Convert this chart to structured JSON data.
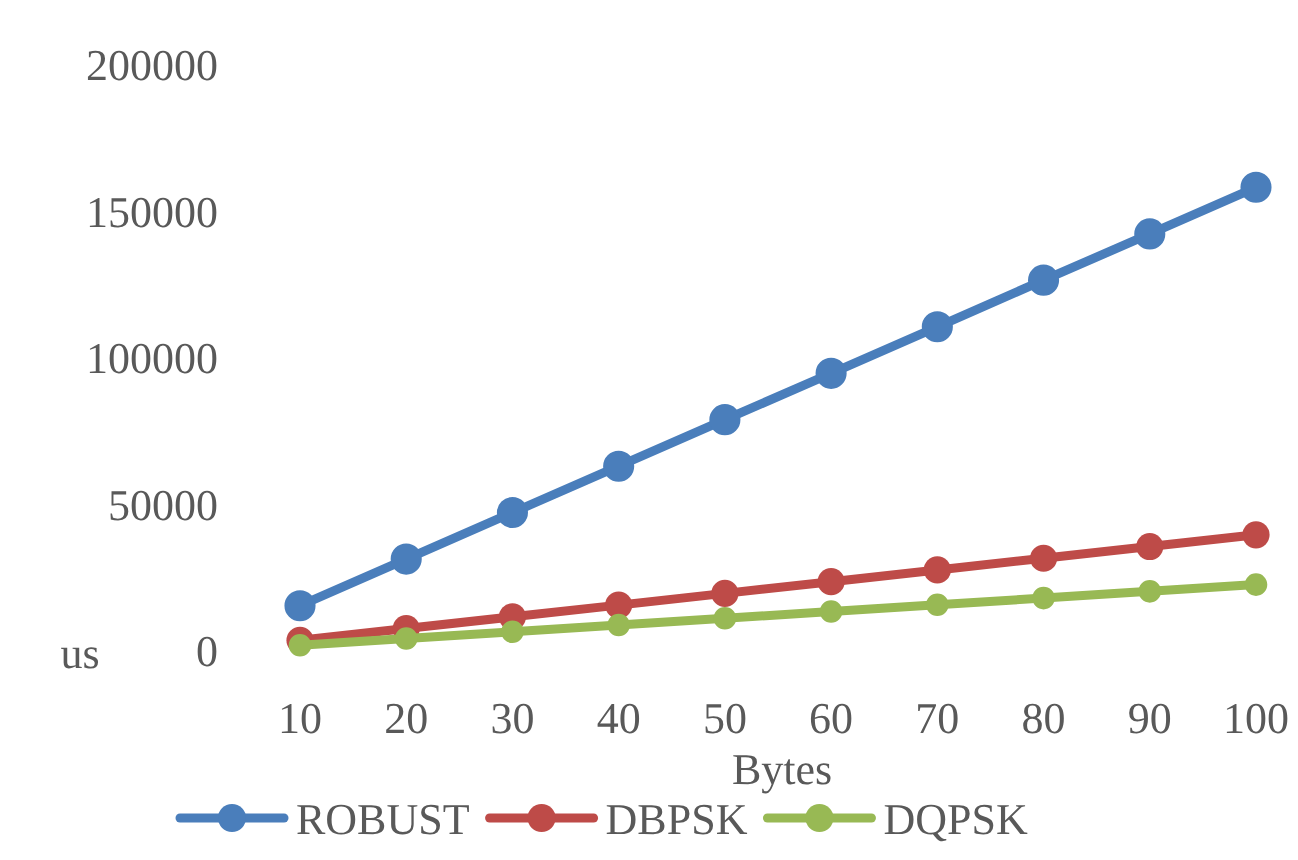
{
  "chart_data": {
    "type": "line",
    "xlabel": "Bytes",
    "ylabel": "us",
    "categories": [
      "10",
      "20",
      "30",
      "40",
      "50",
      "60",
      "70",
      "80",
      "90",
      "100"
    ],
    "series": [
      {
        "name": "ROBUST",
        "color": "#4a7ebb",
        "values": [
          15800,
          31700,
          47600,
          63400,
          79300,
          95100,
          111000,
          126900,
          142700,
          158600
        ]
      },
      {
        "name": "DBPSK",
        "color": "#be4b48",
        "values": [
          4000,
          8000,
          12000,
          16000,
          20000,
          24000,
          28000,
          32000,
          36000,
          40000
        ]
      },
      {
        "name": "DQPSK",
        "color": "#98b954",
        "values": [
          2300,
          4600,
          6900,
          9200,
          11500,
          13800,
          16100,
          18400,
          20700,
          23000
        ]
      }
    ],
    "ylim": [
      0,
      200000
    ],
    "yticks": [
      0,
      50000,
      100000,
      150000,
      200000
    ],
    "grid": false,
    "legend": "bottom",
    "marker": "circle",
    "line_style": "solid"
  }
}
